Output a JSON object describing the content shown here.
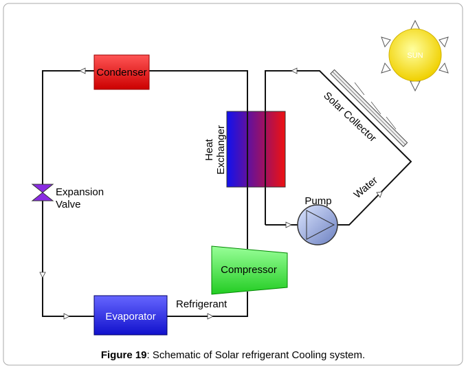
{
  "diagram": {
    "condenser": "Condenser",
    "expansion_valve": [
      "Expansion",
      "Valve"
    ],
    "heat_exchanger": [
      "Heat",
      "Exchanger"
    ],
    "compressor": "Compressor",
    "evaporator": "Evaporator",
    "refrigerant": "Refrigerant",
    "pump": "Pump",
    "water": "Water",
    "solar_collector": "Solar Collector",
    "sun": "SUN"
  },
  "caption": {
    "label": "Figure 19",
    "text": ": Schematic of Solar refrigerant Cooling system."
  }
}
